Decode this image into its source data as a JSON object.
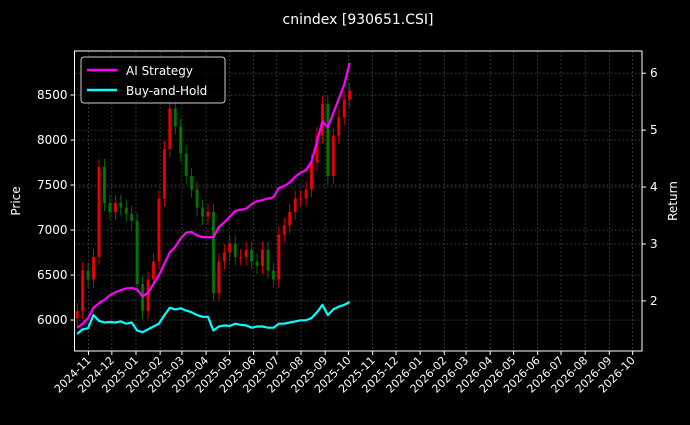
{
  "chart_data": {
    "type": "line",
    "title": "cnindex [930651.CSI]",
    "ylabel": "Price",
    "ylabel_right": "Return",
    "xlim": [
      "2024-10-14",
      "2026-10-13"
    ],
    "ylim": [
      5656,
      8989
    ],
    "ylim_right": [
      1.12,
      6.39
    ],
    "grid": true,
    "legend_placement": "upper-left",
    "x_ticks": [
      "2024-11",
      "2024-12",
      "2025-01",
      "2025-02",
      "2025-03",
      "2025-04",
      "2025-05",
      "2025-06",
      "2025-07",
      "2025-08",
      "2025-09",
      "2025-10",
      "2025-11",
      "2025-12",
      "2026-01",
      "2026-02",
      "2026-03",
      "2026-04",
      "2026-05",
      "2026-06",
      "2026-07",
      "2026-08",
      "2026-09",
      "2026-10"
    ],
    "y_ticks": [
      6000,
      6500,
      7000,
      7500,
      8000,
      8500
    ],
    "y_ticks_right": [
      2,
      3,
      4,
      5,
      6
    ],
    "colors": {
      "up": "#ff0000",
      "down": "#008000",
      "ai": "#ff00ff",
      "bh": "#00ffff",
      "grid": "#555555"
    },
    "dates": [
      "2024-10-14",
      "2024-10-21",
      "2024-10-28",
      "2024-11-04",
      "2024-11-11",
      "2024-11-18",
      "2024-11-25",
      "2024-12-02",
      "2024-12-09",
      "2024-12-16",
      "2024-12-23",
      "2024-12-30",
      "2025-01-06",
      "2025-01-13",
      "2025-01-20",
      "2025-01-27",
      "2025-02-03",
      "2025-02-10",
      "2025-02-17",
      "2025-02-24",
      "2025-03-03",
      "2025-03-10",
      "2025-03-17",
      "2025-03-24",
      "2025-03-31",
      "2025-04-07",
      "2025-04-14",
      "2025-04-21",
      "2025-04-28",
      "2025-05-05",
      "2025-05-12",
      "2025-05-19",
      "2025-05-26",
      "2025-06-02",
      "2025-06-09",
      "2025-06-16",
      "2025-06-23",
      "2025-06-30",
      "2025-07-07",
      "2025-07-14",
      "2025-07-21",
      "2025-07-28",
      "2025-08-04",
      "2025-08-11",
      "2025-08-18",
      "2025-08-25",
      "2025-09-01",
      "2025-09-08",
      "2025-09-15",
      "2025-09-22",
      "2025-09-29"
    ],
    "price_close": [
      6100,
      6550,
      6450,
      6700,
      7700,
      7300,
      7200,
      7300,
      7250,
      7180,
      7100,
      6400,
      6100,
      6450,
      6650,
      7350,
      7900,
      8350,
      8150,
      7850,
      7600,
      7450,
      7250,
      7150,
      7200,
      6300,
      6650,
      6750,
      6850,
      6700,
      6700,
      6780,
      6650,
      6600,
      6780,
      6550,
      6450,
      6950,
      7050,
      7200,
      7350,
      7350,
      7450,
      7750,
      8050,
      8400,
      7600,
      8050,
      8250,
      8450,
      8550
    ],
    "series": [
      {
        "name": "AI Strategy",
        "axis": "right",
        "values": [
          1.53,
          1.6,
          1.7,
          1.88,
          1.96,
          2.02,
          2.1,
          2.15,
          2.19,
          2.22,
          2.23,
          2.2,
          2.08,
          2.14,
          2.3,
          2.45,
          2.65,
          2.85,
          2.95,
          3.1,
          3.2,
          3.21,
          3.15,
          3.12,
          3.12,
          3.12,
          3.3,
          3.38,
          3.48,
          3.58,
          3.6,
          3.62,
          3.7,
          3.75,
          3.77,
          3.8,
          3.82,
          3.98,
          4.02,
          4.08,
          4.18,
          4.25,
          4.3,
          4.45,
          4.8,
          5.15,
          5.05,
          5.3,
          5.55,
          5.8,
          6.18
        ]
      },
      {
        "name": "Buy-and-Hold",
        "axis": "right",
        "values": [
          1.42,
          1.5,
          1.52,
          1.75,
          1.65,
          1.62,
          1.63,
          1.62,
          1.64,
          1.6,
          1.62,
          1.48,
          1.45,
          1.5,
          1.55,
          1.6,
          1.75,
          1.88,
          1.85,
          1.87,
          1.83,
          1.8,
          1.75,
          1.72,
          1.72,
          1.48,
          1.55,
          1.57,
          1.56,
          1.6,
          1.58,
          1.57,
          1.53,
          1.55,
          1.55,
          1.53,
          1.53,
          1.6,
          1.6,
          1.62,
          1.64,
          1.66,
          1.66,
          1.7,
          1.8,
          1.93,
          1.75,
          1.85,
          1.9,
          1.93,
          1.98
        ]
      }
    ]
  }
}
